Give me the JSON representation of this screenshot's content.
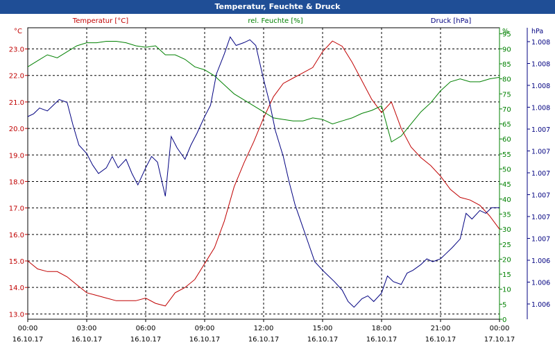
{
  "window": {
    "title": "Temperatur, Feuchte & Druck"
  },
  "chart_data": {
    "type": "line",
    "title": "Temperatur, Feuchte & Druck",
    "x_labels": [
      {
        "time": "00:00",
        "date": "16.10.17"
      },
      {
        "time": "03:00",
        "date": "16.10.17"
      },
      {
        "time": "06:00",
        "date": "16.10.17"
      },
      {
        "time": "09:00",
        "date": "16.10.17"
      },
      {
        "time": "12:00",
        "date": "16.10.17"
      },
      {
        "time": "15:00",
        "date": "16.10.17"
      },
      {
        "time": "18:00",
        "date": "16.10.17"
      },
      {
        "time": "21:00",
        "date": "16.10.17"
      },
      {
        "time": "00:00",
        "date": "17.10.17"
      }
    ],
    "x_range": [
      0,
      24
    ],
    "grid": true,
    "axes": {
      "temp": {
        "unit": "°C",
        "range": [
          12.8,
          23.8
        ],
        "ticks": [
          13.0,
          14.0,
          15.0,
          16.0,
          17.0,
          18.0,
          19.0,
          20.0,
          21.0,
          22.0,
          23.0
        ]
      },
      "hum": {
        "unit": "%",
        "range": [
          0,
          97
        ],
        "ticks": [
          0,
          5,
          10,
          15,
          20,
          25,
          30,
          35,
          40,
          45,
          50,
          55,
          60,
          65,
          70,
          75,
          80,
          85,
          90,
          95
        ]
      },
      "press": {
        "unit": "hPa",
        "range": [
          0,
          1
        ],
        "ticks": [
          "1.006",
          "1.006",
          "1.006",
          "1.007",
          "1.007",
          "1.007",
          "1.007",
          "1.007",
          "1.007",
          "1.008",
          "1.008",
          "1.008",
          "1.008"
        ]
      }
    },
    "colors": {
      "temp": "#c00000",
      "hum": "#008000",
      "press": "#000080"
    },
    "series": [
      {
        "name": "Temperatur [°C]",
        "axis": "temp",
        "points": [
          [
            0,
            15.0
          ],
          [
            0.5,
            14.7
          ],
          [
            1,
            14.6
          ],
          [
            1.5,
            14.6
          ],
          [
            2,
            14.4
          ],
          [
            2.5,
            14.1
          ],
          [
            3,
            13.8
          ],
          [
            3.5,
            13.7
          ],
          [
            4,
            13.6
          ],
          [
            4.5,
            13.5
          ],
          [
            5,
            13.5
          ],
          [
            5.5,
            13.5
          ],
          [
            6,
            13.6
          ],
          [
            6.5,
            13.4
          ],
          [
            7,
            13.3
          ],
          [
            7.5,
            13.8
          ],
          [
            8,
            14.0
          ],
          [
            8.5,
            14.3
          ],
          [
            9,
            14.9
          ],
          [
            9.5,
            15.5
          ],
          [
            10,
            16.5
          ],
          [
            10.5,
            17.8
          ],
          [
            11,
            18.7
          ],
          [
            11.5,
            19.5
          ],
          [
            12,
            20.4
          ],
          [
            12.5,
            21.2
          ],
          [
            13,
            21.7
          ],
          [
            13.5,
            21.9
          ],
          [
            14,
            22.1
          ],
          [
            14.5,
            22.3
          ],
          [
            15,
            22.9
          ],
          [
            15.5,
            23.3
          ],
          [
            16,
            23.1
          ],
          [
            16.5,
            22.5
          ],
          [
            17,
            21.8
          ],
          [
            17.5,
            21.1
          ],
          [
            18,
            20.6
          ],
          [
            18.5,
            21.0
          ],
          [
            19,
            20.0
          ],
          [
            19.5,
            19.3
          ],
          [
            20,
            18.9
          ],
          [
            20.5,
            18.6
          ],
          [
            21,
            18.2
          ],
          [
            21.5,
            17.7
          ],
          [
            22,
            17.4
          ],
          [
            22.5,
            17.3
          ],
          [
            23,
            17.1
          ],
          [
            23.5,
            16.7
          ],
          [
            24,
            16.2
          ]
        ]
      },
      {
        "name": "rel. Feuchte [%]",
        "axis": "hum",
        "points": [
          [
            0,
            84
          ],
          [
            0.5,
            86
          ],
          [
            1,
            88
          ],
          [
            1.5,
            87
          ],
          [
            2,
            89
          ],
          [
            2.5,
            91
          ],
          [
            3,
            92
          ],
          [
            3.5,
            92
          ],
          [
            4,
            92.5
          ],
          [
            4.5,
            92.5
          ],
          [
            5,
            92
          ],
          [
            5.5,
            91
          ],
          [
            6,
            90.5
          ],
          [
            6.5,
            91
          ],
          [
            7,
            88
          ],
          [
            7.5,
            88
          ],
          [
            8,
            86.5
          ],
          [
            8.5,
            84
          ],
          [
            9,
            83
          ],
          [
            9.5,
            81
          ],
          [
            10,
            78
          ],
          [
            10.5,
            75
          ],
          [
            11,
            73
          ],
          [
            11.5,
            71
          ],
          [
            12,
            69
          ],
          [
            12.5,
            67
          ],
          [
            13,
            66.5
          ],
          [
            13.5,
            66
          ],
          [
            14,
            66
          ],
          [
            14.5,
            67
          ],
          [
            15,
            66.5
          ],
          [
            15.5,
            65
          ],
          [
            16,
            66
          ],
          [
            16.5,
            67
          ],
          [
            17,
            68.5
          ],
          [
            17.5,
            69.5
          ],
          [
            18,
            71
          ],
          [
            18.5,
            59
          ],
          [
            19,
            61
          ],
          [
            19.5,
            65
          ],
          [
            20,
            69
          ],
          [
            20.5,
            72
          ],
          [
            21,
            76
          ],
          [
            21.5,
            79
          ],
          [
            22,
            80
          ],
          [
            22.5,
            79
          ],
          [
            23,
            79
          ],
          [
            23.5,
            80
          ],
          [
            24,
            80.5
          ]
        ]
      },
      {
        "name": "Druck [hPa]",
        "axis": "press",
        "points": [
          [
            0,
            0.7
          ],
          [
            0.3,
            0.71
          ],
          [
            0.6,
            0.73
          ],
          [
            1,
            0.72
          ],
          [
            1.3,
            0.74
          ],
          [
            1.6,
            0.76
          ],
          [
            2,
            0.75
          ],
          [
            2.3,
            0.67
          ],
          [
            2.6,
            0.6
          ],
          [
            3,
            0.57
          ],
          [
            3.3,
            0.53
          ],
          [
            3.6,
            0.5
          ],
          [
            4,
            0.52
          ],
          [
            4.3,
            0.56
          ],
          [
            4.6,
            0.52
          ],
          [
            5,
            0.55
          ],
          [
            5.3,
            0.5
          ],
          [
            5.6,
            0.46
          ],
          [
            6,
            0.52
          ],
          [
            6.3,
            0.56
          ],
          [
            6.6,
            0.54
          ],
          [
            7,
            0.42
          ],
          [
            7.3,
            0.63
          ],
          [
            7.6,
            0.59
          ],
          [
            8,
            0.55
          ],
          [
            8.3,
            0.6
          ],
          [
            8.6,
            0.64
          ],
          [
            9,
            0.7
          ],
          [
            9.3,
            0.74
          ],
          [
            9.6,
            0.85
          ],
          [
            10,
            0.92
          ],
          [
            10.3,
            0.98
          ],
          [
            10.6,
            0.95
          ],
          [
            11,
            0.96
          ],
          [
            11.3,
            0.97
          ],
          [
            11.6,
            0.95
          ],
          [
            12,
            0.83
          ],
          [
            12.3,
            0.75
          ],
          [
            12.6,
            0.65
          ],
          [
            13,
            0.56
          ],
          [
            13.3,
            0.47
          ],
          [
            13.6,
            0.39
          ],
          [
            14,
            0.31
          ],
          [
            14.3,
            0.25
          ],
          [
            14.6,
            0.19
          ],
          [
            15,
            0.16
          ],
          [
            15.3,
            0.14
          ],
          [
            15.6,
            0.12
          ],
          [
            16,
            0.09
          ],
          [
            16.3,
            0.05
          ],
          [
            16.6,
            0.03
          ],
          [
            17,
            0.06
          ],
          [
            17.3,
            0.07
          ],
          [
            17.6,
            0.05
          ],
          [
            18,
            0.08
          ],
          [
            18.3,
            0.14
          ],
          [
            18.6,
            0.12
          ],
          [
            19,
            0.11
          ],
          [
            19.3,
            0.15
          ],
          [
            19.6,
            0.16
          ],
          [
            20,
            0.18
          ],
          [
            20.3,
            0.2
          ],
          [
            20.6,
            0.19
          ],
          [
            21,
            0.2
          ],
          [
            21.3,
            0.22
          ],
          [
            21.6,
            0.24
          ],
          [
            22,
            0.27
          ],
          [
            22.3,
            0.36
          ],
          [
            22.6,
            0.34
          ],
          [
            23,
            0.37
          ],
          [
            23.3,
            0.36
          ],
          [
            23.6,
            0.38
          ],
          [
            24,
            0.38
          ]
        ]
      }
    ]
  }
}
